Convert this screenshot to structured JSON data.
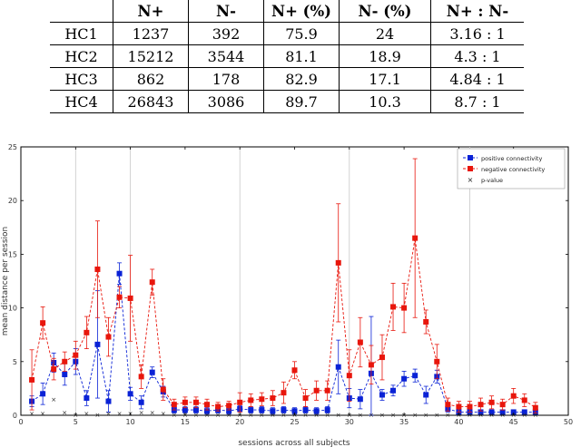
{
  "table": {
    "headers": [
      "",
      "N+",
      "N-",
      "N+ (%)",
      "N- (%)",
      "N+ : N-"
    ],
    "rows": [
      [
        "HC1",
        "1237",
        "392",
        "75.9",
        "24",
        "3.16 : 1"
      ],
      [
        "HC2",
        "15212",
        "3544",
        "81.1",
        "18.9",
        "4.3 : 1"
      ],
      [
        "HC3",
        "862",
        "178",
        "82.9",
        "17.1",
        "4.84 : 1"
      ],
      [
        "HC4",
        "26843",
        "3086",
        "89.7",
        "10.3",
        "8.7 : 1"
      ]
    ]
  },
  "chart_data": {
    "type": "line",
    "xlabel": "sessions across all subjects",
    "ylabel": "mean distance per session",
    "xlim": [
      0,
      50
    ],
    "ylim": [
      0,
      25
    ],
    "xticks": [
      0,
      5,
      10,
      15,
      20,
      25,
      30,
      35,
      40,
      45,
      50
    ],
    "yticks": [
      0,
      5,
      10,
      15,
      20,
      25
    ],
    "vlines": [
      5,
      10,
      20,
      30,
      41
    ],
    "legend_position": "top-right",
    "x": [
      1,
      2,
      3,
      4,
      5,
      6,
      7,
      8,
      9,
      10,
      11,
      12,
      13,
      14,
      15,
      16,
      17,
      18,
      19,
      20,
      21,
      22,
      23,
      24,
      25,
      26,
      27,
      28,
      29,
      30,
      31,
      32,
      33,
      34,
      35,
      36,
      37,
      38,
      39,
      40,
      41,
      42,
      43,
      44,
      45,
      46,
      47
    ],
    "series": [
      {
        "name": "positive connectivity",
        "color": "#0a22d6",
        "values": [
          1.3,
          2.0,
          4.9,
          3.8,
          5.0,
          1.6,
          6.6,
          1.3,
          13.2,
          2.0,
          1.2,
          4.0,
          2.2,
          0.5,
          0.5,
          0.5,
          0.4,
          0.5,
          0.4,
          0.6,
          0.5,
          0.5,
          0.4,
          0.5,
          0.4,
          0.5,
          0.4,
          0.5,
          4.5,
          1.6,
          1.5,
          3.9,
          1.9,
          2.3,
          3.4,
          3.7,
          1.9,
          3.6,
          0.6,
          0.3,
          0.3,
          0.3,
          0.3,
          0.3,
          0.3,
          0.3,
          0.3
        ],
        "err": [
          0.5,
          1.0,
          0.9,
          1.0,
          1.2,
          0.7,
          5.0,
          1.0,
          1.0,
          0.6,
          0.6,
          0.5,
          0.5,
          0.3,
          0.3,
          0.3,
          0.3,
          0.3,
          0.3,
          0.3,
          0.3,
          0.3,
          0.3,
          0.3,
          0.3,
          0.3,
          0.3,
          0.3,
          2.5,
          0.9,
          0.9,
          5.3,
          0.5,
          0.5,
          0.7,
          0.6,
          0.8,
          0.6,
          0.3,
          0.2,
          0.2,
          0.2,
          0.2,
          0.2,
          0.2,
          0.2,
          0.2
        ]
      },
      {
        "name": "negative connectivity",
        "color": "#e8160c",
        "values": [
          3.3,
          8.6,
          4.3,
          5.0,
          5.6,
          7.7,
          13.6,
          7.3,
          11.0,
          10.9,
          3.6,
          12.4,
          2.4,
          1.0,
          1.2,
          1.2,
          1.0,
          0.8,
          0.9,
          1.2,
          1.4,
          1.5,
          1.6,
          2.1,
          4.2,
          1.6,
          2.3,
          2.3,
          14.2,
          3.7,
          6.8,
          4.7,
          5.4,
          10.1,
          10.0,
          16.5,
          8.7,
          5.0,
          1.0,
          0.8,
          0.8,
          1.0,
          1.2,
          1.0,
          1.8,
          1.4,
          0.7
        ],
        "err": [
          2.8,
          1.5,
          1.0,
          0.9,
          1.3,
          1.5,
          4.5,
          1.8,
          1.0,
          4.0,
          1.1,
          1.2,
          1.0,
          0.5,
          0.5,
          0.5,
          0.5,
          0.4,
          0.4,
          0.9,
          0.6,
          0.6,
          0.7,
          1.0,
          0.8,
          0.8,
          0.9,
          0.9,
          5.5,
          2.4,
          2.3,
          1.8,
          2.1,
          2.2,
          2.3,
          7.4,
          1.1,
          1.6,
          0.6,
          0.5,
          0.5,
          0.6,
          0.6,
          0.5,
          0.7,
          0.6,
          0.5
        ]
      },
      {
        "name": "p-value",
        "color": "#222222",
        "values": [
          0.2,
          0.2,
          1.5,
          0.3,
          0.1,
          0.2,
          0.1,
          0.2,
          0.2,
          0.2,
          0.3,
          0.3,
          0.2,
          0.1,
          0.1,
          0.1,
          0.1,
          0.1,
          0.1,
          0.1,
          0.1,
          0.1,
          0.1,
          0.1,
          0.1,
          0.1,
          0.1,
          0.1,
          0.1,
          0.1,
          0.1,
          0.1,
          0.1,
          0.1,
          0.1,
          0.1,
          0.1,
          0.1,
          0.1,
          0.1,
          0.1,
          0.1,
          0.1,
          0.1,
          0.1,
          0.1,
          0.1
        ]
      }
    ]
  }
}
